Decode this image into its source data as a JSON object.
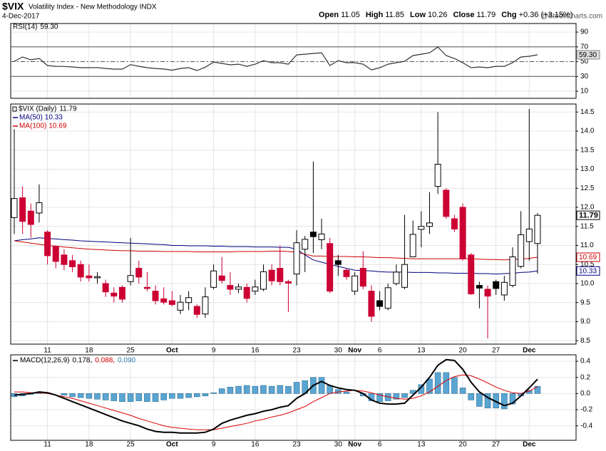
{
  "header": {
    "symbol": "$VIX",
    "name": "Volatility Index - New Methodology INDX",
    "date": "4-Dec-2017",
    "quote": [
      {
        "label": "Open",
        "value": "11.05"
      },
      {
        "label": "High",
        "value": "11.85"
      },
      {
        "label": "Low",
        "value": "10.26"
      },
      {
        "label": "Close",
        "value": "11.79"
      },
      {
        "label": "Chg",
        "value": "+0.36 (+3.15%)"
      }
    ],
    "source": "@StockCharts.com"
  },
  "chart_data": [
    {
      "type": "line",
      "name": "RSI(14)",
      "readout": "59.30",
      "color": "#333333",
      "values": [
        50.5,
        56.3,
        52.5,
        54.3,
        44.7,
        43.7,
        43.5,
        42.8,
        41.8,
        41.8,
        42,
        40.8,
        39.9,
        39.9,
        46,
        43.7,
        41.8,
        40.8,
        40,
        38.5,
        40.8,
        41.8,
        38.0,
        42.5,
        49.5,
        47.6,
        45.7,
        46.6,
        43.7,
        46.6,
        51.4,
        48.6,
        48.6,
        46.6,
        59.2,
        60.1,
        61.1,
        62.0,
        44.7,
        51.4,
        48.6,
        48.6,
        46.6,
        38.9,
        41.8,
        46.6,
        48.6,
        50.5,
        58.2,
        60.1,
        62.0,
        69.8,
        58.2,
        54.3,
        48.6,
        41.8,
        42.8,
        41.8,
        43.7,
        43.7,
        48.6,
        56.3,
        57.3,
        59.3
      ],
      "ylim": [
        0.4,
        101.6
      ],
      "yticks": [
        10,
        30,
        50,
        70,
        90
      ],
      "levels": [
        30,
        50,
        70
      ],
      "grid": true
    },
    {
      "type": "candlestick",
      "name": "$VIX (Daily)",
      "readout": "11.79",
      "up_color": "#000000",
      "down_color": "#cc0033",
      "grid": true,
      "categories": [
        null,
        null,
        null,
        null,
        "11",
        null,
        null,
        null,
        null,
        "18",
        null,
        null,
        null,
        null,
        "25",
        null,
        null,
        null,
        null,
        "Oct",
        null,
        null,
        null,
        null,
        "9",
        null,
        null,
        null,
        null,
        "16",
        null,
        null,
        null,
        null,
        "23",
        null,
        null,
        null,
        null,
        "30",
        null,
        "Nov",
        null,
        null,
        "6",
        null,
        null,
        null,
        null,
        "13",
        null,
        null,
        null,
        null,
        "20",
        null,
        null,
        null,
        "27",
        null,
        null,
        null,
        "Dec",
        null
      ],
      "open": [
        11.73,
        12.25,
        11.9,
        11.85,
        11.35,
        10.98,
        10.75,
        10.6,
        10.5,
        10.2,
        10.15,
        10.0,
        9.75,
        9.9,
        10.05,
        10.4,
        9.9,
        9.8,
        9.6,
        9.55,
        9.3,
        9.5,
        9.4,
        9.2,
        9.9,
        10.2,
        9.95,
        9.85,
        9.9,
        9.8,
        9.85,
        10.35,
        10.4,
        10.05,
        10.25,
        10.9,
        11.35,
        11.15,
        11.05,
        10.6,
        10.35,
        9.8,
        10.4,
        9.8,
        9.55,
        9.35,
        10.0,
        9.9,
        10.7,
        11.42,
        11.5,
        12.55,
        12.45,
        11.7,
        12.0,
        10.75,
        9.95,
        9.85,
        10.05,
        9.7,
        9.95,
        10.45,
        11.1,
        11.05
      ],
      "high": [
        14.05,
        12.55,
        12.1,
        12.6,
        11.4,
        11.0,
        10.9,
        10.75,
        10.6,
        10.5,
        10.3,
        10.1,
        9.9,
        9.95,
        11.2,
        10.6,
        10.3,
        9.95,
        9.9,
        9.8,
        9.7,
        9.8,
        9.45,
        9.9,
        10.5,
        10.7,
        10.3,
        10.0,
        10.0,
        10.1,
        10.5,
        10.5,
        11.0,
        10.1,
        11.4,
        11.25,
        13.2,
        11.7,
        11.2,
        10.75,
        10.4,
        10.3,
        10.85,
        9.95,
        9.8,
        10.0,
        10.5,
        11.8,
        11.65,
        11.9,
        12.4,
        14.5,
        12.5,
        11.8,
        12.1,
        10.8,
        10.05,
        9.95,
        10.1,
        10.2,
        10.95,
        11.9,
        14.58,
        11.85
      ],
      "low": [
        11.3,
        11.3,
        11.2,
        11.6,
        10.5,
        10.4,
        10.35,
        10.3,
        10.05,
        10.05,
        10.0,
        9.65,
        9.5,
        9.5,
        9.95,
        10.0,
        9.8,
        9.45,
        9.45,
        9.4,
        9.2,
        9.3,
        9.1,
        9.1,
        9.85,
        10.0,
        9.7,
        9.75,
        9.5,
        9.7,
        9.8,
        9.95,
        9.95,
        9.25,
        9.95,
        10.3,
        10.8,
        10.9,
        9.75,
        10.2,
        10.1,
        9.7,
        9.85,
        9.0,
        9.3,
        9.3,
        9.95,
        9.85,
        10.7,
        10.95,
        11.3,
        12.35,
        11.7,
        11.35,
        10.6,
        9.7,
        9.35,
        8.56,
        9.7,
        9.55,
        9.9,
        10.4,
        10.6,
        10.26
      ],
      "close": [
        12.23,
        11.63,
        11.55,
        12.12,
        10.73,
        10.58,
        10.5,
        10.44,
        10.17,
        10.15,
        10.18,
        9.78,
        9.67,
        9.59,
        10.21,
        10.17,
        9.87,
        9.55,
        9.51,
        9.45,
        9.51,
        9.63,
        9.19,
        9.65,
        10.33,
        10.08,
        9.85,
        9.91,
        9.61,
        9.91,
        10.31,
        10.07,
        10.05,
        10.01,
        11.07,
        11.16,
        11.23,
        11.3,
        9.8,
        10.5,
        10.18,
        10.2,
        9.93,
        9.14,
        9.4,
        9.89,
        10.3,
        10.5,
        11.29,
        11.5,
        11.59,
        13.13,
        11.76,
        11.43,
        10.65,
        9.73,
        9.88,
        9.67,
        9.87,
        10.03,
        10.7,
        11.28,
        11.43,
        11.79
      ],
      "overlays": [
        {
          "name": "MA(50)",
          "readout": "10.33",
          "color": "#000080",
          "values": [
            11.12,
            11.15,
            11.17,
            11.2,
            11.18,
            11.17,
            11.15,
            11.14,
            11.12,
            11.11,
            11.1,
            11.09,
            11.08,
            11.07,
            11.06,
            11.05,
            11.04,
            11.03,
            11.02,
            11.0,
            11.0,
            10.99,
            10.99,
            10.99,
            10.98,
            10.98,
            10.97,
            10.97,
            10.97,
            10.96,
            10.96,
            10.96,
            10.95,
            10.95,
            10.9,
            10.75,
            10.62,
            10.56,
            10.5,
            10.45,
            10.4,
            10.35,
            10.34,
            10.33,
            10.31,
            10.3,
            10.3,
            10.3,
            10.29,
            10.29,
            10.29,
            10.28,
            10.28,
            10.27,
            10.27,
            10.27,
            10.26,
            10.26,
            10.25,
            10.26,
            10.27,
            10.29,
            10.3,
            10.33
          ]
        },
        {
          "name": "MA(100)",
          "readout": "10.69",
          "color": "#cc0000",
          "values": [
            11.12,
            11.09,
            11.06,
            11.03,
            11.0,
            10.98,
            10.96,
            10.94,
            10.92,
            10.9,
            10.89,
            10.88,
            10.87,
            10.86,
            10.86,
            10.85,
            10.85,
            10.85,
            10.84,
            10.84,
            10.84,
            10.84,
            10.83,
            10.83,
            10.83,
            10.83,
            10.83,
            10.84,
            10.84,
            10.84,
            10.84,
            10.85,
            10.85,
            10.84,
            10.82,
            10.77,
            10.72,
            10.72,
            10.71,
            10.71,
            10.71,
            10.7,
            10.7,
            10.69,
            10.68,
            10.68,
            10.67,
            10.66,
            10.65,
            10.65,
            10.65,
            10.65,
            10.65,
            10.65,
            10.65,
            10.65,
            10.64,
            10.63,
            10.63,
            10.62,
            10.63,
            10.64,
            10.66,
            10.69
          ]
        }
      ],
      "ylim": [
        8.41,
        14.71
      ],
      "yticks": [
        8.5,
        {
          "value": 9,
          "label": "9.0"
        },
        9.5,
        {
          "value": 10,
          "label": "10.0"
        },
        10.5,
        {
          "value": 11,
          "label": "11.0"
        },
        11.5,
        {
          "value": 12,
          "label": "12.0"
        },
        12.5,
        {
          "value": 13,
          "label": "13.0"
        },
        13.5,
        {
          "value": 14,
          "label": "14.0"
        },
        14.5
      ]
    },
    {
      "type": "macd",
      "name": "MACD(12,26,9)",
      "readouts": [
        "0.178,",
        "0.088,",
        "0.090"
      ],
      "grid": true,
      "macd_color": "#000000",
      "signal_color": "#dd0000",
      "histogram_color": "#5aa5d2",
      "categories": [
        null,
        null,
        null,
        null,
        "11",
        null,
        null,
        null,
        null,
        "18",
        null,
        null,
        null,
        null,
        "25",
        null,
        null,
        null,
        null,
        "Oct",
        null,
        null,
        null,
        null,
        "9",
        null,
        null,
        null,
        null,
        "16",
        null,
        null,
        null,
        null,
        "23",
        null,
        null,
        null,
        null,
        "30",
        null,
        "Nov",
        null,
        null,
        "6",
        null,
        null,
        null,
        null,
        "13",
        null,
        null,
        null,
        null,
        "20",
        null,
        null,
        null,
        "27",
        null,
        null,
        null,
        "Dec",
        null
      ],
      "macd": [
        -0.02,
        -0.01,
        0.0,
        0.02,
        0.01,
        -0.02,
        -0.06,
        -0.1,
        -0.14,
        -0.18,
        -0.22,
        -0.26,
        -0.3,
        -0.34,
        -0.37,
        -0.4,
        -0.44,
        -0.47,
        -0.48,
        -0.48,
        -0.49,
        -0.49,
        -0.49,
        -0.48,
        -0.44,
        -0.37,
        -0.33,
        -0.3,
        -0.27,
        -0.25,
        -0.22,
        -0.2,
        -0.17,
        -0.15,
        -0.06,
        0.0,
        0.1,
        0.15,
        0.1,
        0.07,
        0.05,
        0.04,
        0.0,
        -0.08,
        -0.12,
        -0.13,
        -0.13,
        -0.12,
        -0.02,
        0.08,
        0.2,
        0.35,
        0.42,
        0.41,
        0.3,
        0.14,
        0.02,
        -0.05,
        -0.1,
        -0.15,
        -0.12,
        -0.03,
        0.07,
        0.178
      ],
      "signal": [
        0.02,
        0.02,
        0.01,
        0.01,
        0.0,
        -0.02,
        -0.04,
        -0.06,
        -0.09,
        -0.12,
        -0.15,
        -0.18,
        -0.21,
        -0.24,
        -0.27,
        -0.31,
        -0.34,
        -0.37,
        -0.4,
        -0.42,
        -0.43,
        -0.44,
        -0.45,
        -0.45,
        -0.45,
        -0.43,
        -0.41,
        -0.39,
        -0.37,
        -0.34,
        -0.32,
        -0.29,
        -0.27,
        -0.24,
        -0.2,
        -0.16,
        -0.1,
        -0.05,
        0.0,
        0.02,
        0.03,
        0.04,
        0.03,
        0.01,
        -0.02,
        -0.04,
        -0.06,
        -0.07,
        -0.06,
        -0.03,
        0.02,
        0.09,
        0.16,
        0.21,
        0.23,
        0.22,
        0.18,
        0.13,
        0.08,
        0.04,
        0.01,
        0.0,
        0.03,
        0.088
      ],
      "histogram": [
        -0.04,
        -0.03,
        -0.01,
        0.01,
        0.01,
        0.0,
        -0.02,
        -0.04,
        -0.05,
        -0.06,
        -0.07,
        -0.08,
        -0.09,
        -0.1,
        -0.1,
        -0.09,
        -0.1,
        -0.1,
        -0.08,
        -0.06,
        -0.06,
        -0.05,
        -0.04,
        -0.03,
        0.01,
        0.06,
        0.08,
        0.09,
        0.1,
        0.09,
        0.1,
        0.09,
        0.1,
        0.09,
        0.14,
        0.16,
        0.2,
        0.2,
        0.1,
        0.05,
        0.02,
        0.0,
        -0.03,
        -0.09,
        -0.1,
        -0.09,
        -0.07,
        -0.05,
        0.04,
        0.11,
        0.18,
        0.26,
        0.26,
        0.2,
        0.07,
        -0.08,
        -0.16,
        -0.18,
        -0.18,
        -0.19,
        -0.13,
        -0.03,
        0.04,
        0.09
      ],
      "ylim": [
        -0.58,
        0.48
      ],
      "yticks": [
        -0.4,
        -0.2,
        {
          "value": 0,
          "label": "0.0"
        },
        0.2,
        0.4
      ]
    }
  ]
}
